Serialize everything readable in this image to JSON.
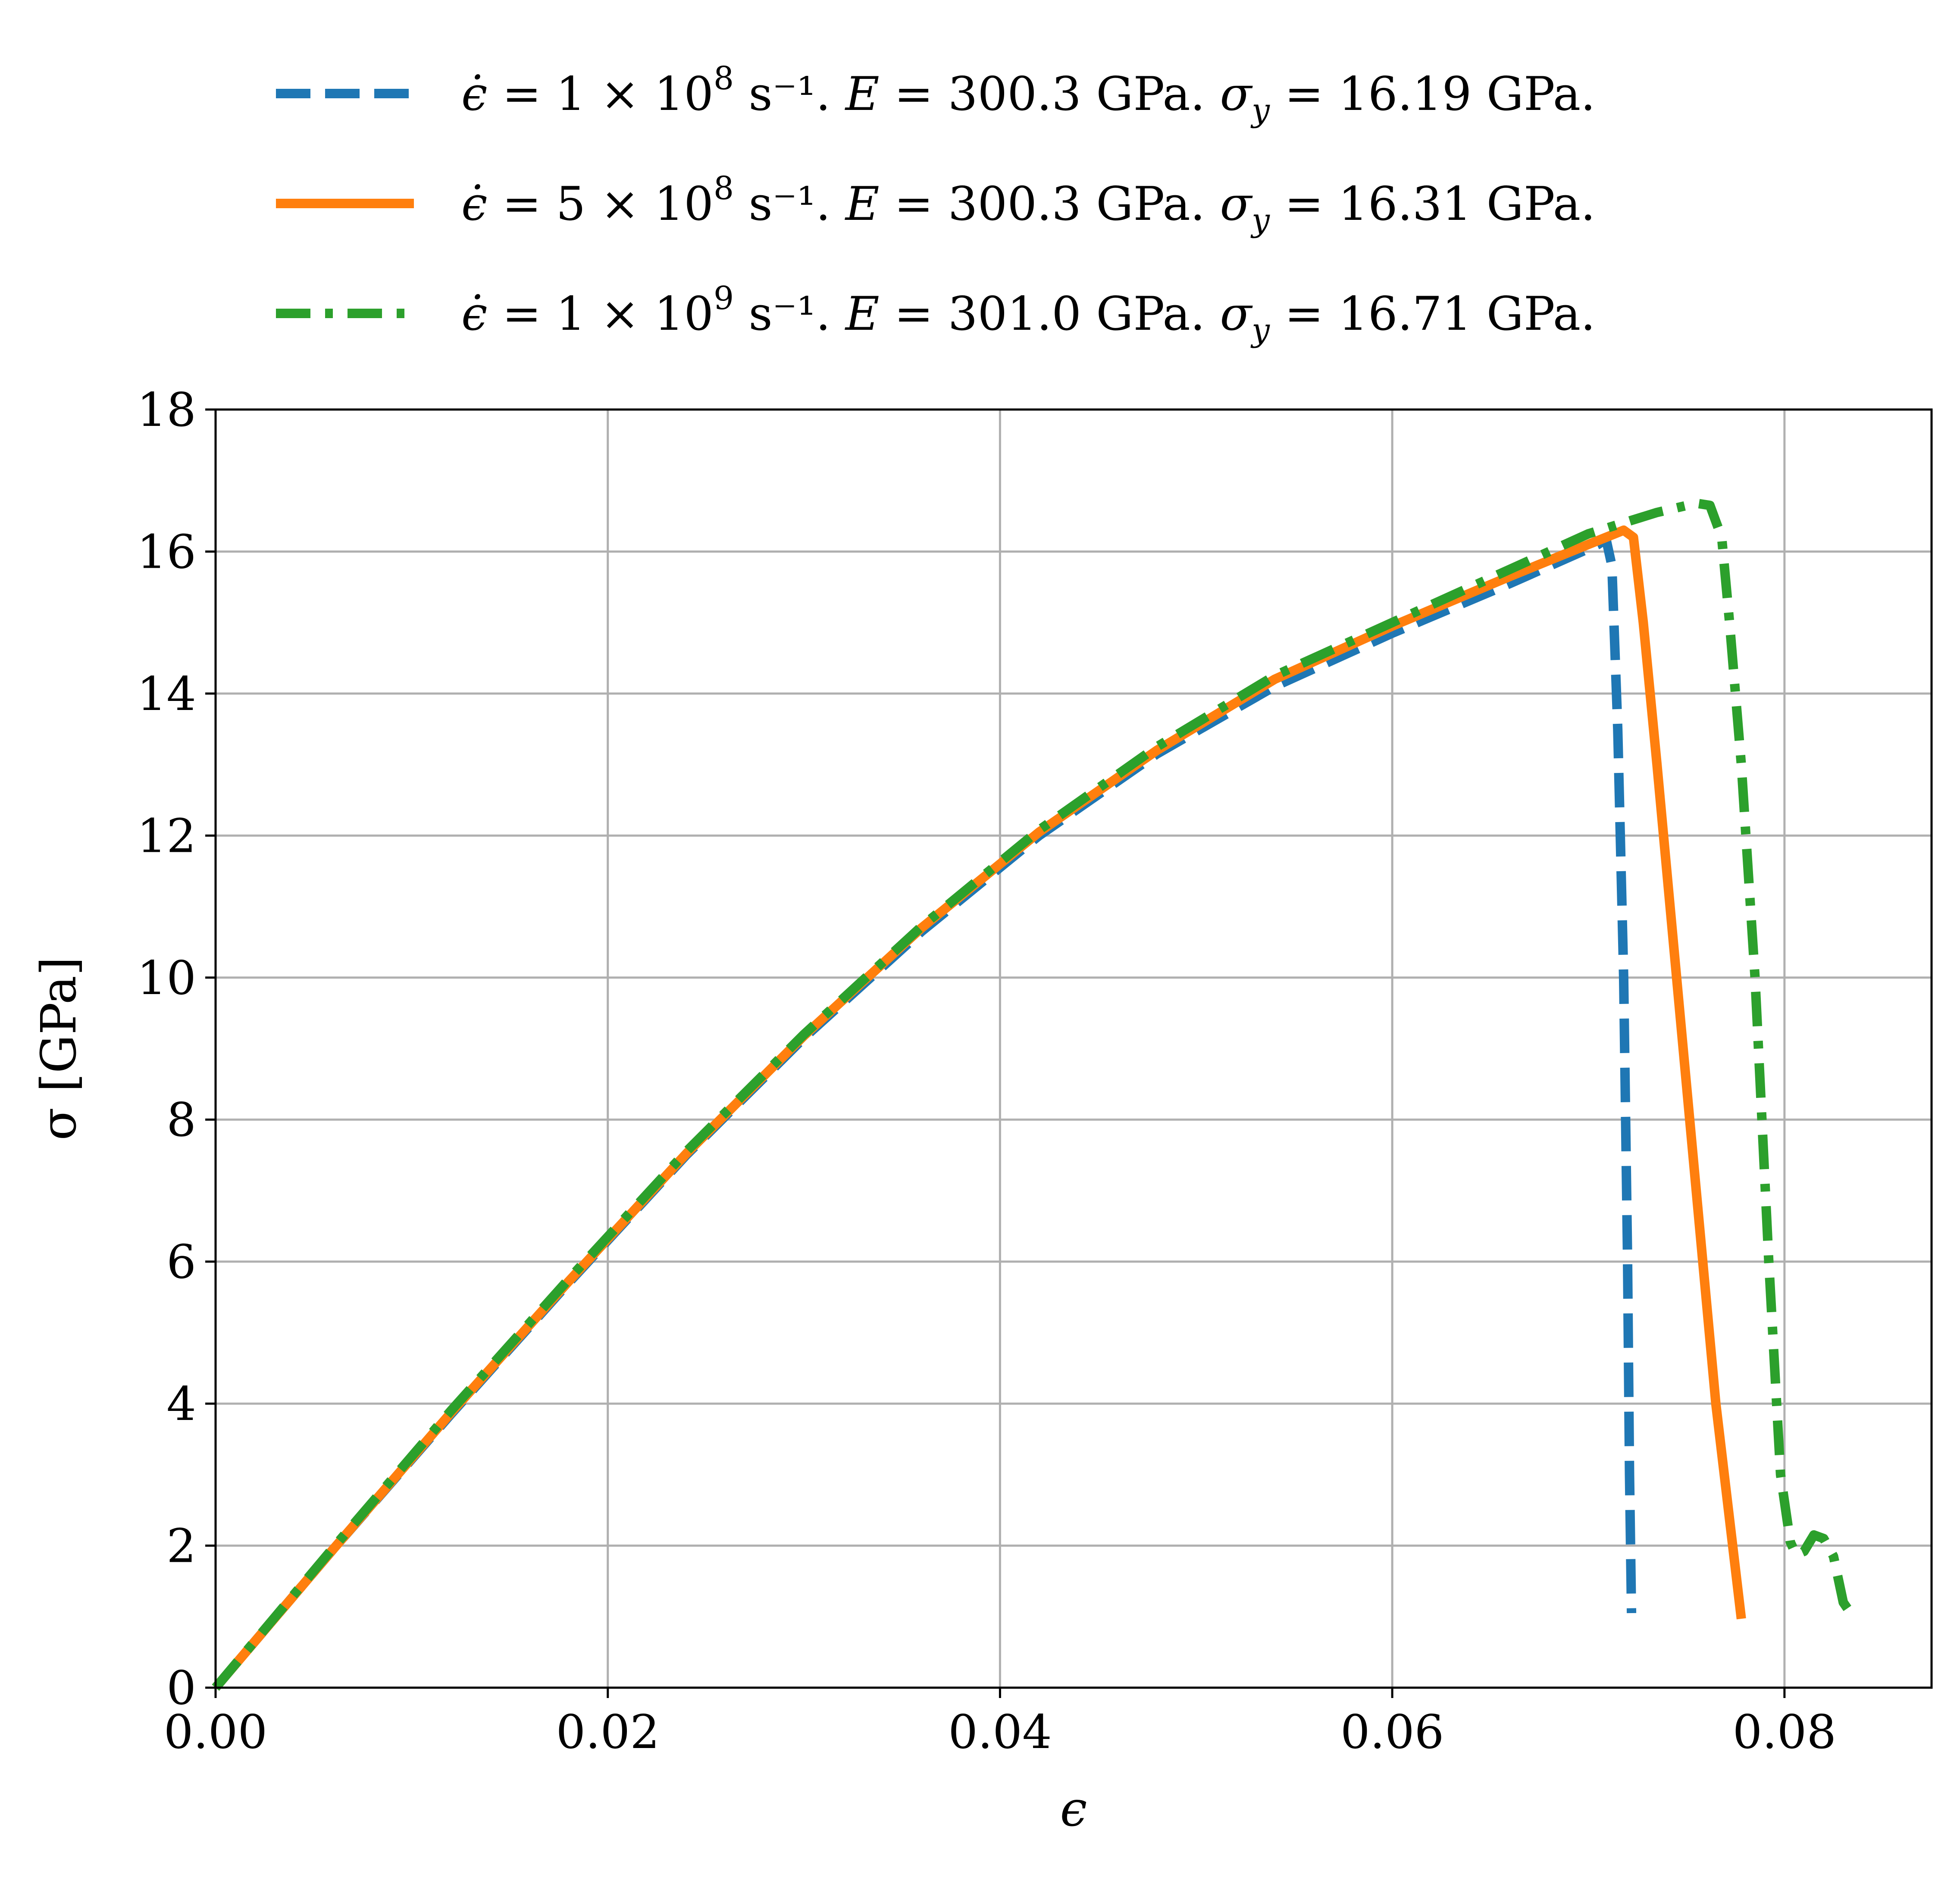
{
  "chart_data": {
    "type": "line",
    "xlabel": "ϵ",
    "ylabel": "σ [GPa]",
    "xlim": [
      0.0,
      0.0875
    ],
    "ylim": [
      0,
      18
    ],
    "xticks": [
      0.0,
      0.02,
      0.04,
      0.06,
      0.08
    ],
    "xtick_labels": [
      "0.00",
      "0.02",
      "0.04",
      "0.06",
      "0.08"
    ],
    "yticks": [
      0,
      2,
      4,
      6,
      8,
      10,
      12,
      14,
      16,
      18
    ],
    "ytick_labels": [
      "0",
      "2",
      "4",
      "6",
      "8",
      "10",
      "12",
      "14",
      "16",
      "18"
    ],
    "grid": true,
    "legend_position": "top (above plot)",
    "series": [
      {
        "name": "ϵ̇ = 1 × 10^8 s⁻¹. E = 300.3 GPa. σy = 16.19 GPa.",
        "legend": {
          "rate_mantissa": "1",
          "rate_exp": "8",
          "E": "300.3 GPa.",
          "sigma_y": "16.19 GPa."
        },
        "color": "#1f77b4",
        "dash": "dashed",
        "points": [
          [
            0.0,
            0.0
          ],
          [
            0.006,
            1.95
          ],
          [
            0.012,
            3.85
          ],
          [
            0.018,
            5.7
          ],
          [
            0.024,
            7.5
          ],
          [
            0.03,
            9.15
          ],
          [
            0.036,
            10.65
          ],
          [
            0.042,
            12.0
          ],
          [
            0.048,
            13.15
          ],
          [
            0.054,
            14.1
          ],
          [
            0.06,
            14.85
          ],
          [
            0.066,
            15.55
          ],
          [
            0.0705,
            16.1
          ],
          [
            0.0709,
            16.18
          ],
          [
            0.0712,
            15.8
          ],
          [
            0.0715,
            13.5
          ],
          [
            0.0718,
            10.0
          ],
          [
            0.072,
            6.0
          ],
          [
            0.0721,
            3.0
          ],
          [
            0.0722,
            1.05
          ]
        ]
      },
      {
        "name": "ϵ̇ = 5 × 10^8 s⁻¹. E = 300.3 GPa. σy = 16.31 GPa.",
        "legend": {
          "rate_mantissa": "5",
          "rate_exp": "8",
          "E": "300.3 GPa.",
          "sigma_y": "16.31 GPa."
        },
        "color": "#ff7f0e",
        "dash": "solid",
        "points": [
          [
            0.0,
            0.0
          ],
          [
            0.006,
            1.95
          ],
          [
            0.012,
            3.87
          ],
          [
            0.018,
            5.72
          ],
          [
            0.024,
            7.52
          ],
          [
            0.03,
            9.18
          ],
          [
            0.036,
            10.7
          ],
          [
            0.042,
            12.05
          ],
          [
            0.048,
            13.2
          ],
          [
            0.054,
            14.2
          ],
          [
            0.06,
            14.95
          ],
          [
            0.066,
            15.65
          ],
          [
            0.07,
            16.1
          ],
          [
            0.0718,
            16.3
          ],
          [
            0.0723,
            16.2
          ],
          [
            0.0728,
            15.0
          ],
          [
            0.0735,
            13.0
          ],
          [
            0.0745,
            10.0
          ],
          [
            0.0755,
            7.0
          ],
          [
            0.0765,
            4.0
          ],
          [
            0.0778,
            0.97
          ]
        ]
      },
      {
        "name": "ϵ̇ = 1 × 10^9 s⁻¹. E = 301.0 GPa. σy = 16.71 GPa.",
        "legend": {
          "rate_mantissa": "1",
          "rate_exp": "9",
          "E": "301.0 GPa.",
          "sigma_y": "16.71 GPa."
        },
        "color": "#2ca02c",
        "dash": "dashdot",
        "points": [
          [
            0.0,
            0.0
          ],
          [
            0.006,
            1.97
          ],
          [
            0.012,
            3.9
          ],
          [
            0.018,
            5.75
          ],
          [
            0.024,
            7.55
          ],
          [
            0.03,
            9.2
          ],
          [
            0.036,
            10.72
          ],
          [
            0.042,
            12.08
          ],
          [
            0.048,
            13.25
          ],
          [
            0.054,
            14.25
          ],
          [
            0.06,
            15.0
          ],
          [
            0.066,
            15.75
          ],
          [
            0.07,
            16.25
          ],
          [
            0.0735,
            16.55
          ],
          [
            0.0755,
            16.68
          ],
          [
            0.0762,
            16.65
          ],
          [
            0.0768,
            16.2
          ],
          [
            0.0772,
            15.0
          ],
          [
            0.0778,
            13.0
          ],
          [
            0.0785,
            10.0
          ],
          [
            0.0792,
            6.0
          ],
          [
            0.0798,
            3.0
          ],
          [
            0.0803,
            2.05
          ],
          [
            0.0806,
            1.87
          ],
          [
            0.081,
            1.92
          ],
          [
            0.0815,
            2.15
          ],
          [
            0.082,
            2.1
          ],
          [
            0.0825,
            1.85
          ],
          [
            0.083,
            1.2
          ],
          [
            0.0835,
            1.0
          ]
        ]
      }
    ]
  }
}
